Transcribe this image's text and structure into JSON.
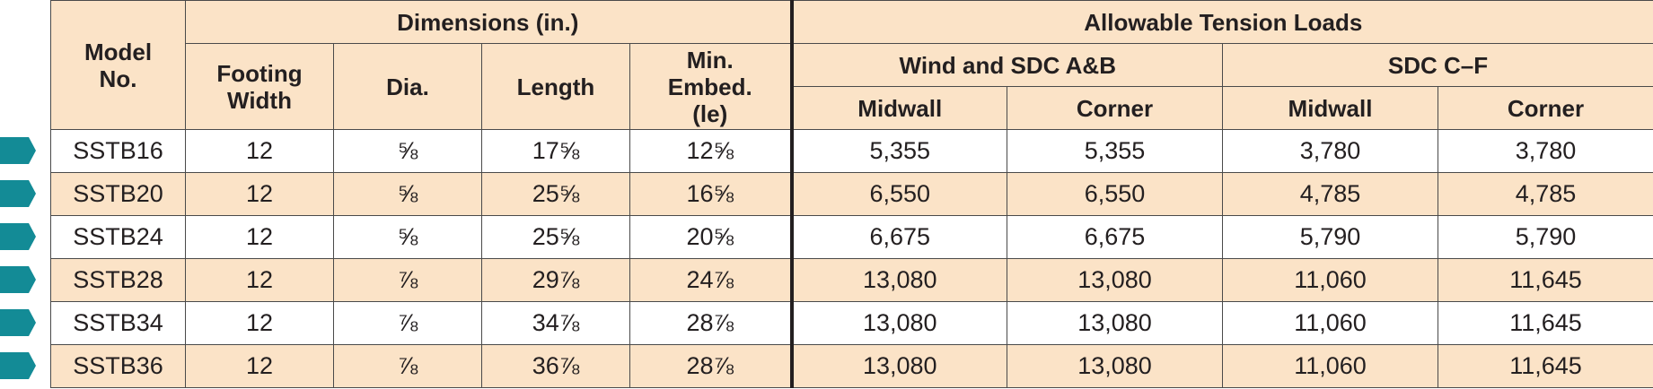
{
  "headers": {
    "model": "Model No.",
    "dimensions": "Dimensions (in.)",
    "footing": "Footing Width",
    "dia": "Dia.",
    "length": "Length",
    "embed": "Min. Embed. (le)",
    "allowable": "Allowable Tension Loads",
    "wind": "Wind and SDC A&B",
    "sdc": "SDC C–F",
    "wind_midwall": "Midwall",
    "wind_corner": "Corner",
    "sdc_midwall": "Midwall",
    "sdc_corner": "Corner"
  },
  "rows": [
    {
      "model": "SSTB16",
      "footing": "12",
      "dia": "⅝",
      "length": "17⅝",
      "embed": "12⅝",
      "wind_midwall": "5,355",
      "wind_corner": "5,355",
      "sdc_midwall": "3,780",
      "sdc_corner": "3,780"
    },
    {
      "model": "SSTB20",
      "footing": "12",
      "dia": "⅝",
      "length": "25⅝",
      "embed": "16⅝",
      "wind_midwall": "6,550",
      "wind_corner": "6,550",
      "sdc_midwall": "4,785",
      "sdc_corner": "4,785"
    },
    {
      "model": "SSTB24",
      "footing": "12",
      "dia": "⅝",
      "length": "25⅝",
      "embed": "20⅝",
      "wind_midwall": "6,675",
      "wind_corner": "6,675",
      "sdc_midwall": "5,790",
      "sdc_corner": "5,790"
    },
    {
      "model": "SSTB28",
      "footing": "12",
      "dia": "⅞",
      "length": "29⅞",
      "embed": "24⅞",
      "wind_midwall": "13,080",
      "wind_corner": "13,080",
      "sdc_midwall": "11,060",
      "sdc_corner": "11,645"
    },
    {
      "model": "SSTB34",
      "footing": "12",
      "dia": "⅞",
      "length": "34⅞",
      "embed": "28⅞",
      "wind_midwall": "13,080",
      "wind_corner": "13,080",
      "sdc_midwall": "11,060",
      "sdc_corner": "11,645"
    },
    {
      "model": "SSTB36",
      "footing": "12",
      "dia": "⅞",
      "length": "36⅞",
      "embed": "28⅞",
      "wind_midwall": "13,080",
      "wind_corner": "13,080",
      "sdc_midwall": "11,060",
      "sdc_corner": "11,645"
    }
  ],
  "colors": {
    "header_bg": "#fbe3c7",
    "marker": "#138b96",
    "border": "#4a4a4a"
  },
  "row_marker_icon": "arrow-tab-icon"
}
